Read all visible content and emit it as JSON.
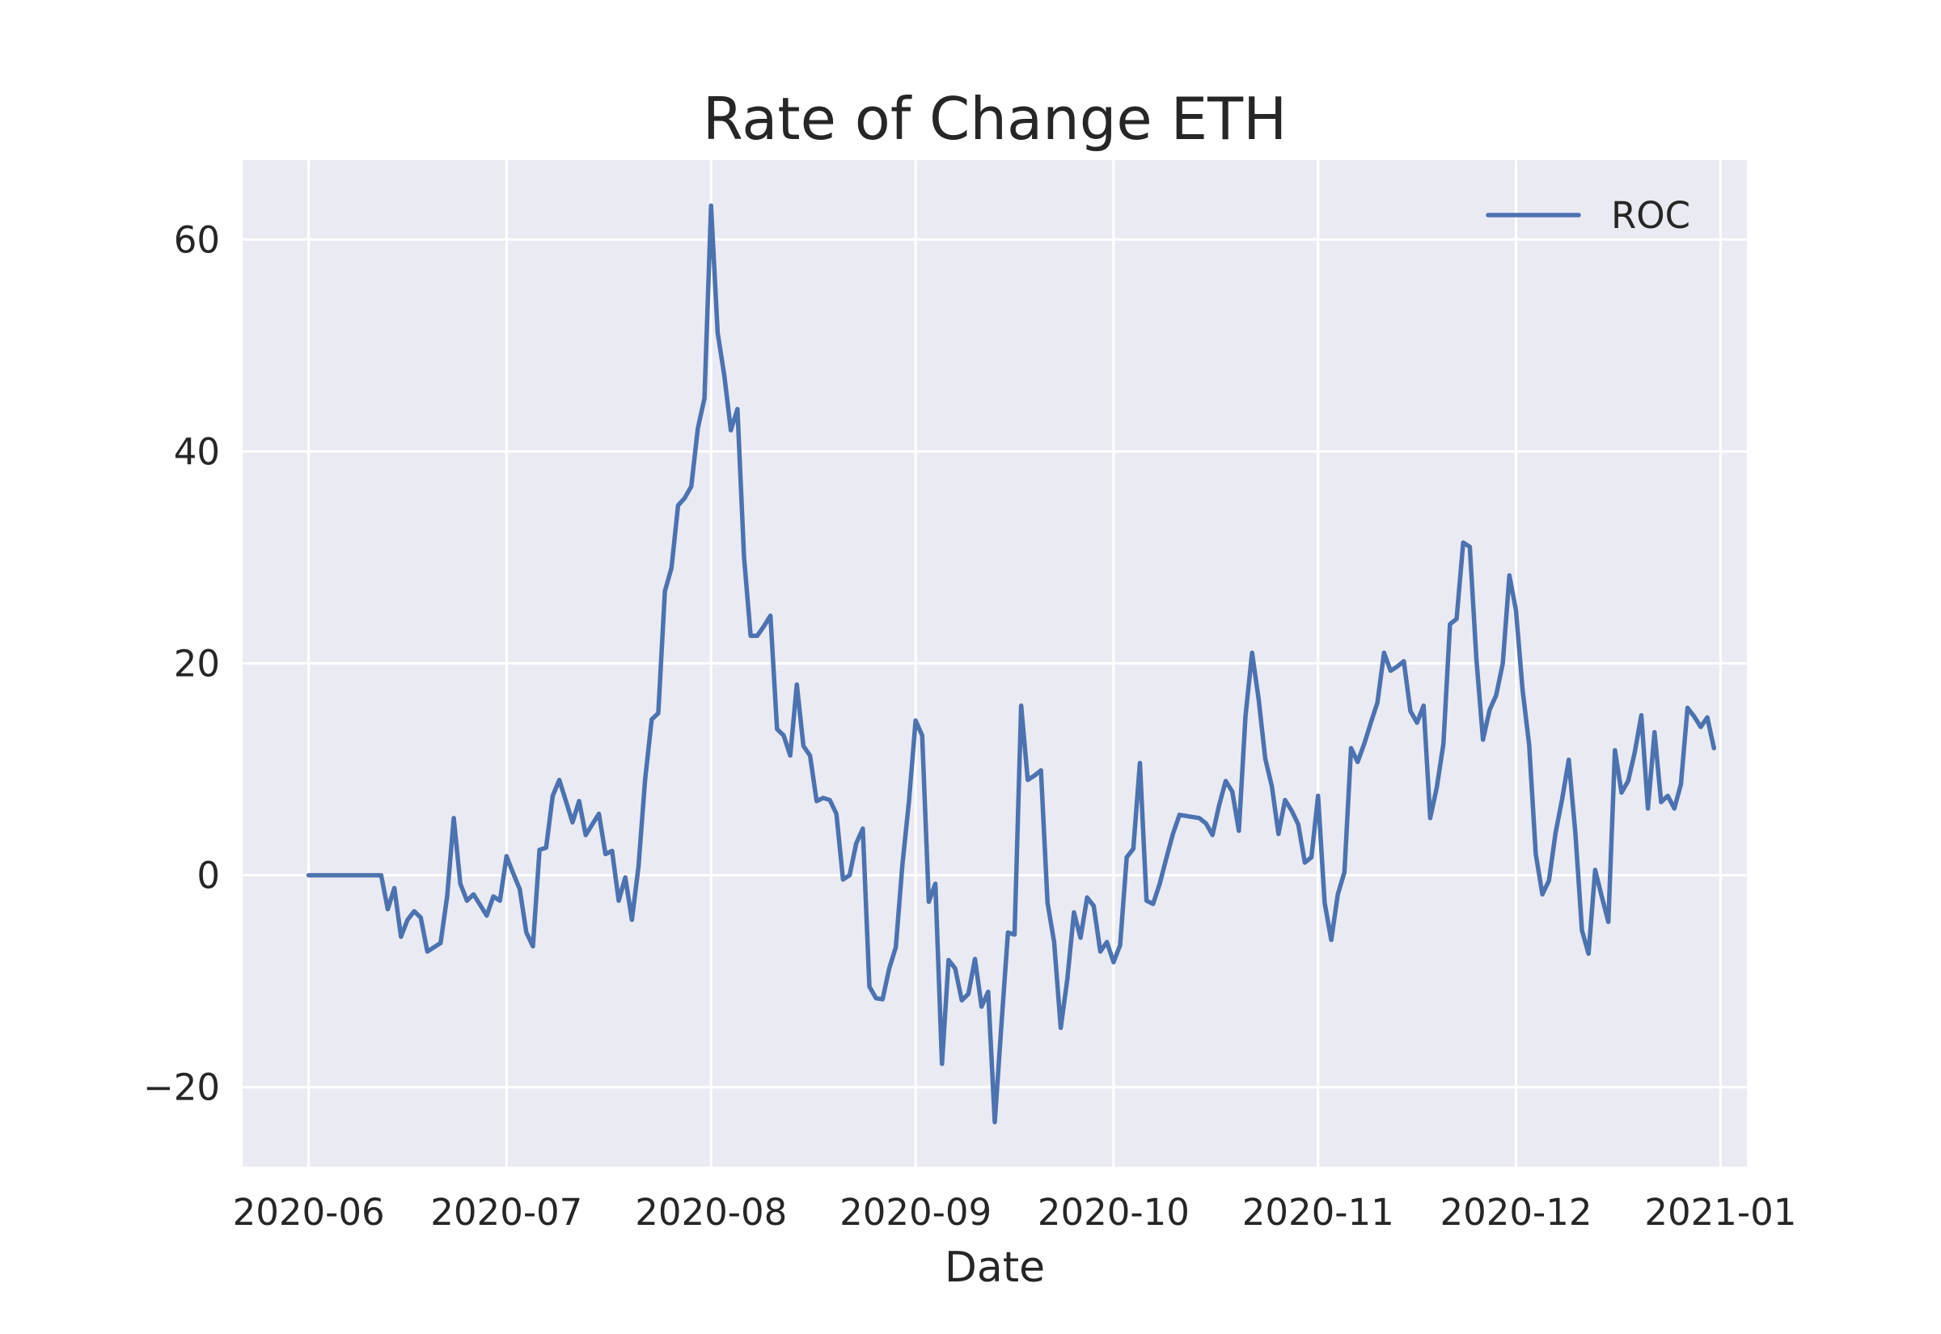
{
  "chart_data": {
    "type": "line",
    "title": "Rate of Change ETH",
    "xlabel": "Date",
    "ylabel": "",
    "xlim": [
      "2020-05-22",
      "2021-01-05"
    ],
    "ylim": [
      -27.5,
      67.5
    ],
    "grid": true,
    "legend_position": "top-right",
    "x_ticks": [
      {
        "date": "2020-06-01",
        "label": "2020-06"
      },
      {
        "date": "2020-07-01",
        "label": "2020-07"
      },
      {
        "date": "2020-08-01",
        "label": "2020-08"
      },
      {
        "date": "2020-09-01",
        "label": "2020-09"
      },
      {
        "date": "2020-10-01",
        "label": "2020-10"
      },
      {
        "date": "2020-11-01",
        "label": "2020-11"
      },
      {
        "date": "2020-12-01",
        "label": "2020-12"
      },
      {
        "date": "2021-01-01",
        "label": "2021-01"
      }
    ],
    "y_ticks": [
      {
        "value": -20,
        "label": "−20"
      },
      {
        "value": 0,
        "label": "0"
      },
      {
        "value": 20,
        "label": "20"
      },
      {
        "value": 40,
        "label": "40"
      },
      {
        "value": 60,
        "label": "60"
      }
    ],
    "series": [
      {
        "name": "ROC",
        "color": "#4c72b0",
        "points": [
          [
            "2020-06-01",
            0
          ],
          [
            "2020-06-05",
            0
          ],
          [
            "2020-06-08",
            0
          ],
          [
            "2020-06-11",
            0
          ],
          [
            "2020-06-12",
            0
          ],
          [
            "2020-06-13",
            -3.2
          ],
          [
            "2020-06-14",
            -1.2
          ],
          [
            "2020-06-15",
            -5.8
          ],
          [
            "2020-06-16",
            -4.2
          ],
          [
            "2020-06-17",
            -3.4
          ],
          [
            "2020-06-18",
            -4.0
          ],
          [
            "2020-06-19",
            -7.2
          ],
          [
            "2020-06-20",
            -6.8
          ],
          [
            "2020-06-21",
            -6.4
          ],
          [
            "2020-06-22",
            -2.0
          ],
          [
            "2020-06-23",
            5.4
          ],
          [
            "2020-06-24",
            -0.8
          ],
          [
            "2020-06-25",
            -2.4
          ],
          [
            "2020-06-26",
            -1.8
          ],
          [
            "2020-06-27",
            -2.8
          ],
          [
            "2020-06-28",
            -3.8
          ],
          [
            "2020-06-29",
            -2.0
          ],
          [
            "2020-06-30",
            -2.4
          ],
          [
            "2020-07-01",
            1.8
          ],
          [
            "2020-07-02",
            0.2
          ],
          [
            "2020-07-03",
            -1.3
          ],
          [
            "2020-07-04",
            -5.4
          ],
          [
            "2020-07-05",
            -6.7
          ],
          [
            "2020-07-06",
            2.4
          ],
          [
            "2020-07-07",
            2.6
          ],
          [
            "2020-07-08",
            7.5
          ],
          [
            "2020-07-09",
            9.0
          ],
          [
            "2020-07-10",
            7.0
          ],
          [
            "2020-07-11",
            5.0
          ],
          [
            "2020-07-12",
            7.0
          ],
          [
            "2020-07-13",
            3.8
          ],
          [
            "2020-07-14",
            4.8
          ],
          [
            "2020-07-15",
            5.8
          ],
          [
            "2020-07-16",
            2.0
          ],
          [
            "2020-07-17",
            2.3
          ],
          [
            "2020-07-18",
            -2.4
          ],
          [
            "2020-07-19",
            -0.2
          ],
          [
            "2020-07-20",
            -4.2
          ],
          [
            "2020-07-21",
            0.8
          ],
          [
            "2020-07-22",
            9.0
          ],
          [
            "2020-07-23",
            14.7
          ],
          [
            "2020-07-24",
            15.3
          ],
          [
            "2020-07-25",
            26.8
          ],
          [
            "2020-07-26",
            29.0
          ],
          [
            "2020-07-27",
            34.9
          ],
          [
            "2020-07-28",
            35.6
          ],
          [
            "2020-07-29",
            36.7
          ],
          [
            "2020-07-30",
            42.2
          ],
          [
            "2020-07-31",
            45.0
          ],
          [
            "2020-08-01",
            63.2
          ],
          [
            "2020-08-02",
            51.2
          ],
          [
            "2020-08-03",
            47.2
          ],
          [
            "2020-08-04",
            42.0
          ],
          [
            "2020-08-05",
            44.0
          ],
          [
            "2020-08-06",
            30.0
          ],
          [
            "2020-08-07",
            22.6
          ],
          [
            "2020-08-08",
            22.6
          ],
          [
            "2020-08-09",
            23.5
          ],
          [
            "2020-08-10",
            24.5
          ],
          [
            "2020-08-11",
            13.8
          ],
          [
            "2020-08-12",
            13.2
          ],
          [
            "2020-08-13",
            11.3
          ],
          [
            "2020-08-14",
            18.0
          ],
          [
            "2020-08-15",
            12.2
          ],
          [
            "2020-08-16",
            11.3
          ],
          [
            "2020-08-17",
            7.0
          ],
          [
            "2020-08-18",
            7.3
          ],
          [
            "2020-08-19",
            7.1
          ],
          [
            "2020-08-20",
            5.8
          ],
          [
            "2020-08-21",
            -0.4
          ],
          [
            "2020-08-22",
            0.0
          ],
          [
            "2020-08-23",
            3.0
          ],
          [
            "2020-08-24",
            4.4
          ],
          [
            "2020-08-25",
            -10.5
          ],
          [
            "2020-08-26",
            -11.6
          ],
          [
            "2020-08-27",
            -11.7
          ],
          [
            "2020-08-28",
            -8.8
          ],
          [
            "2020-08-29",
            -6.8
          ],
          [
            "2020-08-30",
            1.0
          ],
          [
            "2020-08-31",
            7.0
          ],
          [
            "2020-09-01",
            14.6
          ],
          [
            "2020-09-02",
            13.2
          ],
          [
            "2020-09-03",
            -2.5
          ],
          [
            "2020-09-04",
            -0.8
          ],
          [
            "2020-09-05",
            -17.8
          ],
          [
            "2020-09-06",
            -8.0
          ],
          [
            "2020-09-07",
            -8.8
          ],
          [
            "2020-09-08",
            -11.8
          ],
          [
            "2020-09-09",
            -11.2
          ],
          [
            "2020-09-10",
            -7.9
          ],
          [
            "2020-09-11",
            -12.4
          ],
          [
            "2020-09-12",
            -11.0
          ],
          [
            "2020-09-13",
            -23.3
          ],
          [
            "2020-09-14",
            -14.2
          ],
          [
            "2020-09-15",
            -5.4
          ],
          [
            "2020-09-16",
            -5.6
          ],
          [
            "2020-09-17",
            16.0
          ],
          [
            "2020-09-18",
            9.0
          ],
          [
            "2020-09-19",
            9.4
          ],
          [
            "2020-09-20",
            9.9
          ],
          [
            "2020-09-21",
            -2.6
          ],
          [
            "2020-09-22",
            -6.3
          ],
          [
            "2020-09-23",
            -14.4
          ],
          [
            "2020-09-24",
            -9.8
          ],
          [
            "2020-09-25",
            -3.5
          ],
          [
            "2020-09-26",
            -5.9
          ],
          [
            "2020-09-27",
            -2.1
          ],
          [
            "2020-09-28",
            -2.9
          ],
          [
            "2020-09-29",
            -7.2
          ],
          [
            "2020-09-30",
            -6.3
          ],
          [
            "2020-10-01",
            -8.2
          ],
          [
            "2020-10-02",
            -6.6
          ],
          [
            "2020-10-03",
            1.7
          ],
          [
            "2020-10-04",
            2.5
          ],
          [
            "2020-10-05",
            10.6
          ],
          [
            "2020-10-06",
            -2.4
          ],
          [
            "2020-10-07",
            -2.7
          ],
          [
            "2020-10-08",
            -0.8
          ],
          [
            "2020-10-09",
            1.6
          ],
          [
            "2020-10-10",
            3.9
          ],
          [
            "2020-10-11",
            5.7
          ],
          [
            "2020-10-13",
            5.5
          ],
          [
            "2020-10-14",
            5.4
          ],
          [
            "2020-10-15",
            4.9
          ],
          [
            "2020-10-16",
            3.8
          ],
          [
            "2020-10-17",
            6.6
          ],
          [
            "2020-10-18",
            8.9
          ],
          [
            "2020-10-19",
            7.9
          ],
          [
            "2020-10-20",
            4.2
          ],
          [
            "2020-10-21",
            15.0
          ],
          [
            "2020-10-22",
            21.0
          ],
          [
            "2020-10-23",
            16.6
          ],
          [
            "2020-10-24",
            11.0
          ],
          [
            "2020-10-25",
            8.4
          ],
          [
            "2020-10-26",
            3.9
          ],
          [
            "2020-10-27",
            7.1
          ],
          [
            "2020-10-28",
            6.1
          ],
          [
            "2020-10-29",
            4.8
          ],
          [
            "2020-10-30",
            1.2
          ],
          [
            "2020-10-31",
            1.7
          ],
          [
            "2020-11-01",
            7.5
          ],
          [
            "2020-11-02",
            -2.6
          ],
          [
            "2020-11-03",
            -6.1
          ],
          [
            "2020-11-04",
            -1.8
          ],
          [
            "2020-11-05",
            0.3
          ],
          [
            "2020-11-06",
            12.0
          ],
          [
            "2020-11-07",
            10.7
          ],
          [
            "2020-11-08",
            12.4
          ],
          [
            "2020-11-09",
            14.4
          ],
          [
            "2020-11-10",
            16.3
          ],
          [
            "2020-11-11",
            21.0
          ],
          [
            "2020-11-12",
            19.3
          ],
          [
            "2020-11-13",
            19.7
          ],
          [
            "2020-11-14",
            20.2
          ],
          [
            "2020-11-15",
            15.5
          ],
          [
            "2020-11-16",
            14.4
          ],
          [
            "2020-11-17",
            16.0
          ],
          [
            "2020-11-18",
            5.4
          ],
          [
            "2020-11-19",
            8.3
          ],
          [
            "2020-11-20",
            12.4
          ],
          [
            "2020-11-21",
            23.7
          ],
          [
            "2020-11-22",
            24.2
          ],
          [
            "2020-11-23",
            31.4
          ],
          [
            "2020-11-24",
            31.0
          ],
          [
            "2020-11-25",
            20.4
          ],
          [
            "2020-11-26",
            12.8
          ],
          [
            "2020-11-27",
            15.6
          ],
          [
            "2020-11-28",
            17.0
          ],
          [
            "2020-11-29",
            20.0
          ],
          [
            "2020-11-30",
            28.3
          ],
          [
            "2020-12-01",
            25.0
          ],
          [
            "2020-12-02",
            17.5
          ],
          [
            "2020-12-03",
            12.3
          ],
          [
            "2020-12-04",
            2.0
          ],
          [
            "2020-12-05",
            -1.8
          ],
          [
            "2020-12-06",
            -0.5
          ],
          [
            "2020-12-07",
            4.0
          ],
          [
            "2020-12-08",
            7.2
          ],
          [
            "2020-12-09",
            10.9
          ],
          [
            "2020-12-10",
            4.0
          ],
          [
            "2020-12-11",
            -5.2
          ],
          [
            "2020-12-12",
            -7.4
          ],
          [
            "2020-12-13",
            0.5
          ],
          [
            "2020-12-14",
            -2.0
          ],
          [
            "2020-12-15",
            -4.4
          ],
          [
            "2020-12-16",
            11.8
          ],
          [
            "2020-12-17",
            7.8
          ],
          [
            "2020-12-18",
            8.9
          ],
          [
            "2020-12-19",
            11.6
          ],
          [
            "2020-12-20",
            15.1
          ],
          [
            "2020-12-21",
            6.3
          ],
          [
            "2020-12-22",
            13.5
          ],
          [
            "2020-12-23",
            6.9
          ],
          [
            "2020-12-24",
            7.5
          ],
          [
            "2020-12-25",
            6.3
          ],
          [
            "2020-12-26",
            8.6
          ],
          [
            "2020-12-27",
            15.8
          ],
          [
            "2020-12-28",
            15.0
          ],
          [
            "2020-12-29",
            14.0
          ],
          [
            "2020-12-30",
            14.9
          ],
          [
            "2020-12-31",
            12.0
          ]
        ]
      }
    ]
  },
  "colors": {
    "plot_background": "#eaeaf2",
    "grid": "#ffffff",
    "text": "#262626",
    "line": "#4c72b0"
  }
}
